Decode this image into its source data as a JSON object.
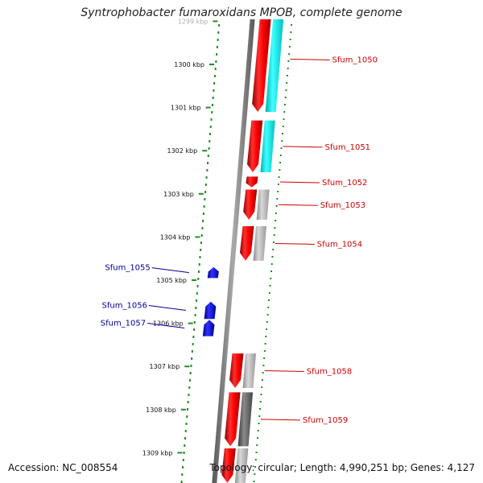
{
  "title": "Syntrophobacter fumaroxidans MPOB, complete genome",
  "footer": {
    "accession": "Accession: NC_008554",
    "summary": "Topology: circular; Length: 4,990,251 bp; Genes: 4,127"
  },
  "colors": {
    "forward_gene": "#ff0000",
    "forward_gene_dark": "#b00000",
    "reverse_gene": "#0000ff",
    "cds_light": "#b8b8b8",
    "cds_dark": "#6e6e6e",
    "cds_cyan": "#00e5e5",
    "backbone": "#8c8c8c",
    "ruler": "#228b22",
    "label_forward": "#cc0000",
    "label_reverse": "#000099"
  },
  "ruler": {
    "ticks": [
      "1299 kbp",
      "1300 kbp",
      "1301 kbp",
      "1302 kbp",
      "1303 kbp",
      "1304 kbp",
      "1305 kbp",
      "1306 kbp",
      "1307 kbp",
      "1308 kbp",
      "1309 kbp"
    ]
  },
  "genes": [
    {
      "name": "Sfum_1050",
      "strand": "+",
      "start_kbp": 1298.8,
      "end_kbp": 1301.1,
      "cds": "cyan"
    },
    {
      "name": "Sfum_1051",
      "strand": "+",
      "start_kbp": 1301.3,
      "end_kbp": 1302.5,
      "cds": "cyan"
    },
    {
      "name": "Sfum_1052",
      "strand": "+",
      "start_kbp": 1302.6,
      "end_kbp": 1302.85,
      "cds": "none"
    },
    {
      "name": "Sfum_1053",
      "strand": "+",
      "start_kbp": 1302.9,
      "end_kbp": 1303.6,
      "cds": "light"
    },
    {
      "name": "Sfum_1054",
      "strand": "+",
      "start_kbp": 1303.75,
      "end_kbp": 1304.55,
      "cds": "light"
    },
    {
      "name": "Sfum_1055",
      "strand": "-",
      "start_kbp": 1304.7,
      "end_kbp": 1304.95,
      "cds": "none"
    },
    {
      "name": "Sfum_1056",
      "strand": "-",
      "start_kbp": 1305.5,
      "end_kbp": 1305.9,
      "cds": "none"
    },
    {
      "name": "Sfum_1057",
      "strand": "-",
      "start_kbp": 1305.92,
      "end_kbp": 1306.3,
      "cds": "none"
    },
    {
      "name": "Sfum_1058",
      "strand": "+",
      "start_kbp": 1306.7,
      "end_kbp": 1307.5,
      "cds": "light"
    },
    {
      "name": "Sfum_1059",
      "strand": "+",
      "start_kbp": 1307.6,
      "end_kbp": 1308.85,
      "cds": "dark"
    },
    {
      "name": "",
      "strand": "+",
      "start_kbp": 1308.9,
      "end_kbp": 1309.7,
      "cds": "light"
    }
  ]
}
